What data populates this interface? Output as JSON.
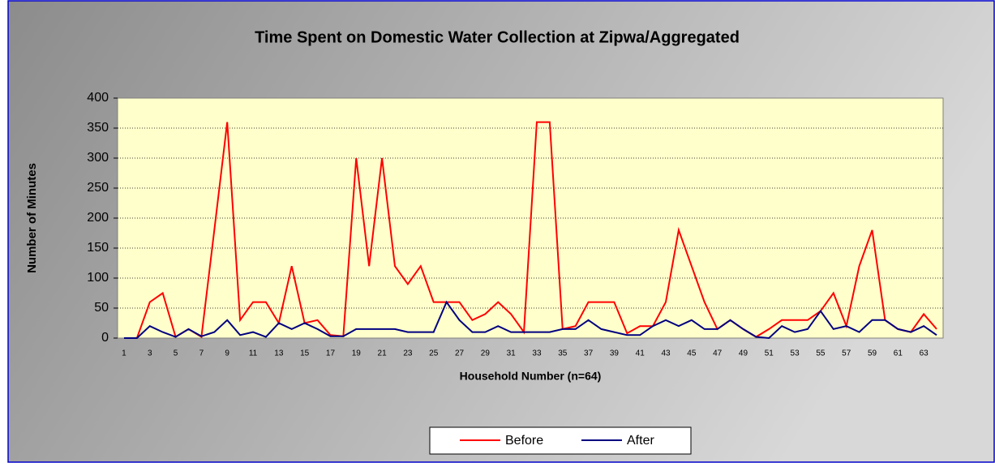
{
  "chart_data": {
    "type": "line",
    "title": "Time Spent on Domestic Water Collection at Zipwa/Aggregated",
    "x_label": "Household Number (n=64)",
    "y_label": "Number of Minutes",
    "categories": [
      1,
      null,
      3,
      null,
      5,
      null,
      7,
      null,
      9,
      null,
      11,
      null,
      13,
      null,
      15,
      null,
      17,
      null,
      19,
      null,
      21,
      null,
      23,
      null,
      25,
      null,
      27,
      null,
      29,
      null,
      31,
      null,
      33,
      null,
      35,
      null,
      37,
      null,
      39,
      null,
      41,
      null,
      43,
      null,
      45,
      null,
      47,
      null,
      49,
      null,
      51,
      null,
      53,
      null,
      55,
      null,
      57,
      null,
      59,
      null,
      61,
      null,
      63,
      null
    ],
    "series": [
      {
        "name": "Before",
        "color": "#ff0000",
        "values": [
          0,
          0,
          60,
          75,
          2,
          15,
          2,
          180,
          360,
          30,
          60,
          60,
          25,
          120,
          25,
          30,
          5,
          3,
          300,
          120,
          300,
          120,
          90,
          120,
          60,
          60,
          60,
          30,
          40,
          60,
          40,
          10,
          360,
          360,
          15,
          20,
          60,
          60,
          60,
          8,
          20,
          20,
          60,
          180,
          120,
          60,
          15,
          30,
          15,
          2,
          15,
          30,
          30,
          30,
          45,
          75,
          20,
          120,
          180,
          30,
          15,
          10,
          40,
          15
        ]
      },
      {
        "name": "After",
        "color": "#000080",
        "values": [
          0,
          0,
          20,
          10,
          2,
          15,
          3,
          10,
          30,
          5,
          10,
          2,
          25,
          15,
          25,
          15,
          3,
          3,
          15,
          15,
          15,
          15,
          10,
          10,
          10,
          60,
          30,
          10,
          10,
          20,
          10,
          10,
          10,
          10,
          15,
          15,
          30,
          15,
          10,
          5,
          5,
          20,
          30,
          20,
          30,
          15,
          15,
          30,
          15,
          2,
          0,
          20,
          10,
          15,
          45,
          15,
          20,
          10,
          30,
          30,
          15,
          10,
          20,
          5
        ]
      }
    ],
    "ylim": [
      0,
      400
    ],
    "yticks": [
      0,
      50,
      100,
      150,
      200,
      250,
      300,
      350,
      400
    ],
    "grid": true,
    "legend": "bottom"
  }
}
